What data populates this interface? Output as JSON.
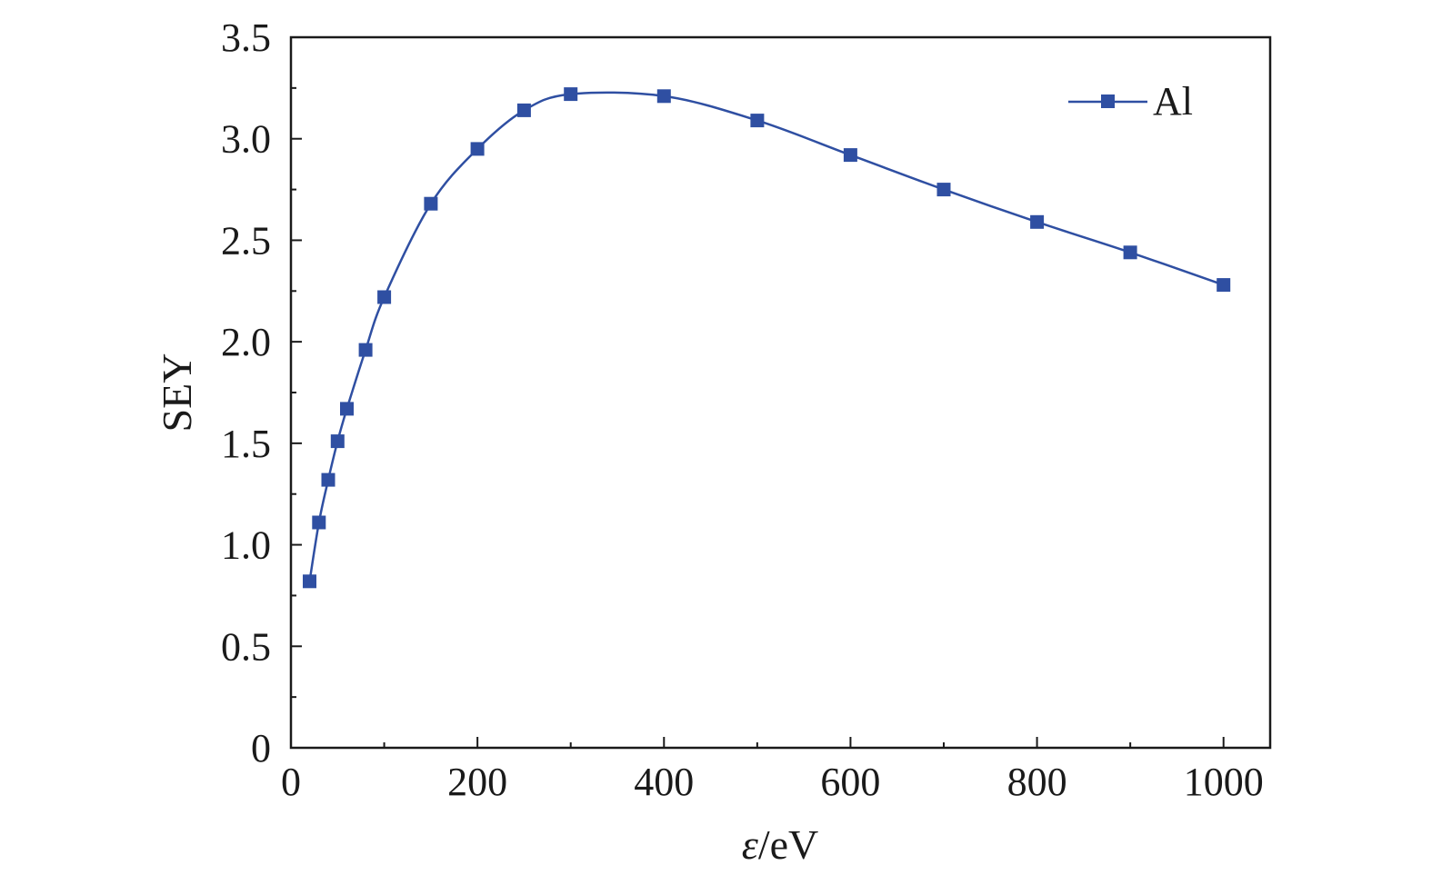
{
  "chart_data": {
    "type": "line",
    "xlabel_italic": "ε",
    "xlabel_rest": "/eV",
    "ylabel": "SEY",
    "xlim": [
      0,
      1050
    ],
    "ylim": [
      0,
      3.5
    ],
    "xticks": [
      0,
      200,
      400,
      600,
      800,
      1000
    ],
    "xtick_labels": [
      "0",
      "200",
      "400",
      "600",
      "800",
      "1000"
    ],
    "yticks": [
      0,
      0.5,
      1.0,
      1.5,
      2.0,
      2.5,
      3.0,
      3.5
    ],
    "ytick_labels": [
      "0",
      "0.5",
      "1.0",
      "1.5",
      "2.0",
      "2.5",
      "3.0",
      "3.5"
    ],
    "grid": false,
    "legend_position": "top-right",
    "series": [
      {
        "name": "Al",
        "color": "#2f4fa2",
        "marker": "square",
        "x": [
          20,
          30,
          40,
          50,
          60,
          80,
          100,
          150,
          200,
          250,
          300,
          400,
          500,
          600,
          700,
          800,
          900,
          1000
        ],
        "y": [
          0.82,
          1.11,
          1.32,
          1.51,
          1.67,
          1.96,
          2.22,
          2.68,
          2.95,
          3.14,
          3.22,
          3.21,
          3.09,
          2.92,
          2.75,
          2.59,
          2.44,
          2.28
        ]
      }
    ]
  }
}
